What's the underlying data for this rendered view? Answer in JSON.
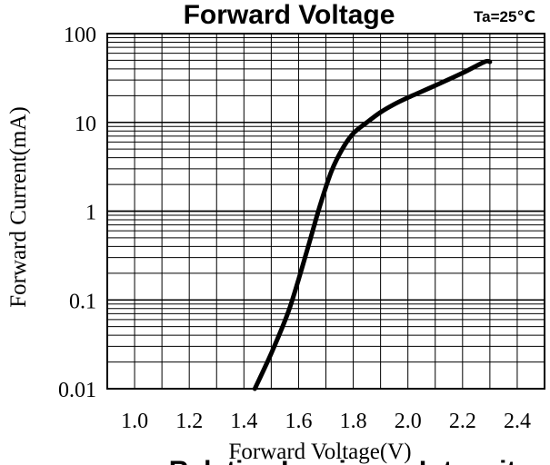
{
  "chart_data": {
    "type": "line",
    "title": "",
    "top_title_fragment": "Forward Voltage",
    "bottom_title_fragment": "Relative Luminous Intensity",
    "condition_label": "Ta=25℃",
    "xlabel": "Forward Voltage(V)",
    "ylabel": "Forward Current(mA)",
    "x_scale": "linear",
    "y_scale": "log",
    "xlim": [
      0.9,
      2.5
    ],
    "ylim": [
      0.01,
      100
    ],
    "x_ticks": [
      "1.0",
      "1.2",
      "1.4",
      "1.6",
      "1.8",
      "2.0",
      "2.2",
      "2.4"
    ],
    "y_ticks": [
      "0.01",
      "0.1",
      "1",
      "10",
      "100"
    ],
    "grid": true,
    "series": [
      {
        "values": [
          {
            "x": 1.44,
            "y": 0.01
          },
          {
            "x": 1.5,
            "y": 0.025
          },
          {
            "x": 1.56,
            "y": 0.07
          },
          {
            "x": 1.6,
            "y": 0.17
          },
          {
            "x": 1.64,
            "y": 0.45
          },
          {
            "x": 1.68,
            "y": 1.2
          },
          {
            "x": 1.72,
            "y": 2.8
          },
          {
            "x": 1.76,
            "y": 5.0
          },
          {
            "x": 1.8,
            "y": 7.5
          },
          {
            "x": 1.85,
            "y": 10.0
          },
          {
            "x": 1.9,
            "y": 13.0
          },
          {
            "x": 1.95,
            "y": 16.0
          },
          {
            "x": 2.0,
            "y": 19.0
          },
          {
            "x": 2.1,
            "y": 26.0
          },
          {
            "x": 2.2,
            "y": 36.0
          },
          {
            "x": 2.28,
            "y": 48.0
          },
          {
            "x": 2.3,
            "y": 48.0
          }
        ]
      }
    ]
  }
}
